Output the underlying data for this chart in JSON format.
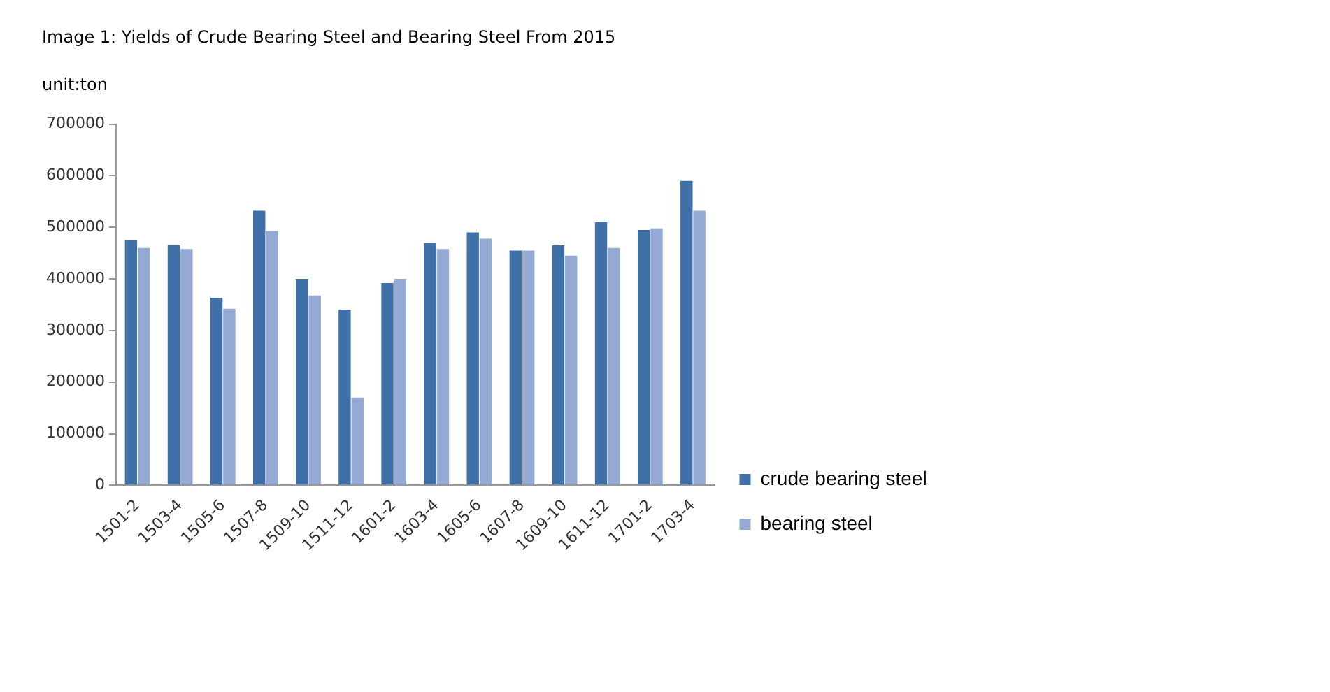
{
  "chart_data": {
    "type": "bar",
    "title": "Image 1: Yields of Crude Bearing Steel and Bearing Steel From 2015",
    "subtitle": "unit:ton",
    "categories": [
      "1501-2",
      "1503-4",
      "1505-6",
      "1507-8",
      "1509-10",
      "1511-12",
      "1601-2",
      "1603-4",
      "1605-6",
      "1607-8",
      "1609-10",
      "1611-12",
      "1701-2",
      "1703-4"
    ],
    "series": [
      {
        "name": "crude bearing steel",
        "color": "#4070a8",
        "values": [
          475000,
          465000,
          363000,
          532000,
          400000,
          340000,
          392000,
          470000,
          490000,
          455000,
          465000,
          510000,
          495000,
          590000
        ]
      },
      {
        "name": "bearing steel",
        "color": "#94aad4",
        "values": [
          460000,
          458000,
          342000,
          493000,
          368000,
          170000,
          400000,
          458000,
          478000,
          455000,
          445000,
          460000,
          498000,
          532000
        ]
      }
    ],
    "ylim": [
      0,
      700000
    ],
    "yticks": [
      0,
      100000,
      200000,
      300000,
      400000,
      500000,
      600000,
      700000
    ],
    "grid": false,
    "legend": "right"
  }
}
